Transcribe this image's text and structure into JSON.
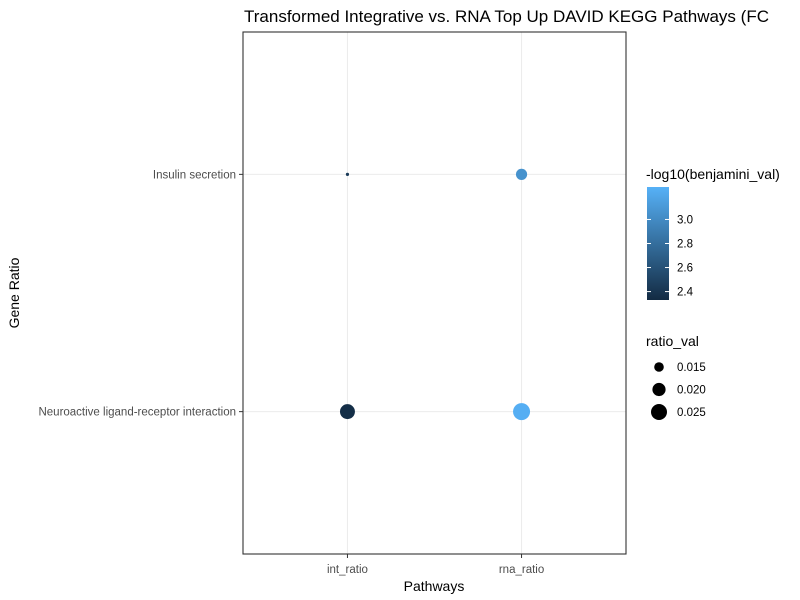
{
  "chart_data": {
    "type": "scatter",
    "title": "Transformed Integrative vs. RNA Top Up DAVID KEGG Pathways (FC",
    "xlabel": "Pathways",
    "ylabel": "Gene Ratio",
    "x_categories": [
      "int_ratio",
      "rna_ratio"
    ],
    "y_categories": [
      "Neuroactive ligand-receptor interaction",
      "Insulin secretion"
    ],
    "grid": true,
    "points": [
      {
        "x": "int_ratio",
        "y": "Insulin secretion",
        "ratio_val": 0.01,
        "neg_log10_benjamini": 2.45
      },
      {
        "x": "rna_ratio",
        "y": "Insulin secretion",
        "ratio_val": 0.017,
        "neg_log10_benjamini": 3.05
      },
      {
        "x": "int_ratio",
        "y": "Neuroactive ligand-receptor interaction",
        "ratio_val": 0.023,
        "neg_log10_benjamini": 2.35
      },
      {
        "x": "rna_ratio",
        "y": "Neuroactive ligand-receptor interaction",
        "ratio_val": 0.027,
        "neg_log10_benjamini": 3.25
      }
    ],
    "color_legend": {
      "title": "-log10(benjamini_val)",
      "range": [
        2.33,
        3.27
      ],
      "low_color": "#132B43",
      "high_color": "#56B1F7",
      "breaks": [
        2.4,
        2.6,
        2.8,
        3.0
      ],
      "break_labels": [
        "2.4",
        "2.6",
        "2.8",
        "3.0"
      ]
    },
    "size_legend": {
      "title": "ratio_val",
      "range": [
        0.01,
        0.027
      ],
      "breaks": [
        0.015,
        0.02,
        0.025
      ],
      "break_labels": [
        "0.015",
        "0.020",
        "0.025"
      ],
      "legend_color": "#000000"
    }
  }
}
